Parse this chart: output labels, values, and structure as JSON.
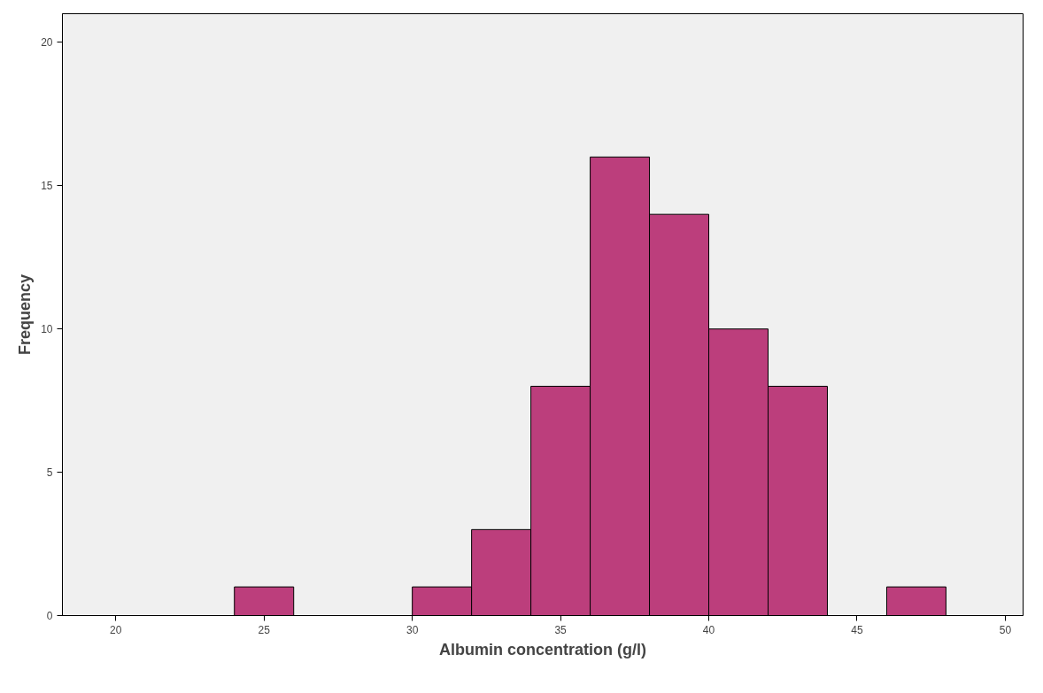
{
  "chart_data": {
    "type": "histogram",
    "xlabel": "Albumin concentration (g/l)",
    "ylabel": "Frequency",
    "bins": [
      24,
      26,
      28,
      30,
      32,
      34,
      36,
      38,
      40,
      42,
      44,
      46,
      48
    ],
    "values": [
      1,
      0,
      0,
      1,
      3,
      8,
      16,
      14,
      10,
      8,
      0,
      1
    ],
    "color": "#bc3e7c",
    "xlim": [
      18.2,
      50.6
    ],
    "xticks": [
      20,
      25,
      30,
      35,
      40,
      45,
      50
    ],
    "ylim": [
      0,
      21
    ],
    "yticks": [
      0,
      5,
      10,
      15,
      20
    ],
    "grid": false
  }
}
